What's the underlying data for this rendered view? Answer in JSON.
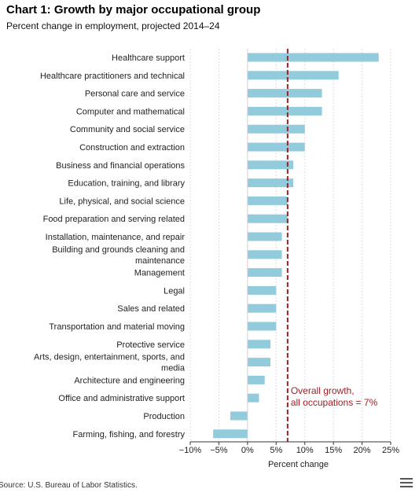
{
  "title": "Chart 1: Growth by major occupational group",
  "subtitle": "Percent change in employment, projected 2014–24",
  "source": "Source: U.S. Bureau of Labor Statistics.",
  "chart_data": {
    "type": "bar",
    "orientation": "horizontal",
    "categories": [
      "Healthcare support",
      "Healthcare practitioners and technical",
      "Personal care and service",
      "Computer and mathematical",
      "Community and social service",
      "Construction and extraction",
      "Business and financial operations",
      "Education, training, and library",
      "Life, physical, and social science",
      "Food preparation and serving related",
      "Installation, maintenance, and repair",
      "Building and grounds cleaning and maintenance",
      "Management",
      "Legal",
      "Sales and related",
      "Transportation and material moving",
      "Protective service",
      "Arts, design, entertainment, sports, and media",
      "Architecture and engineering",
      "Office and administrative support",
      "Production",
      "Farming, fishing, and forestry"
    ],
    "category_lines": [
      [
        "Healthcare support"
      ],
      [
        "Healthcare practitioners and technical"
      ],
      [
        "Personal care and service"
      ],
      [
        "Computer and mathematical"
      ],
      [
        "Community and social service"
      ],
      [
        "Construction and extraction"
      ],
      [
        "Business and financial operations"
      ],
      [
        "Education, training, and library"
      ],
      [
        "Life, physical, and social science"
      ],
      [
        "Food preparation and serving related"
      ],
      [
        "Installation, maintenance, and repair"
      ],
      [
        "Building and grounds cleaning and",
        "maintenance"
      ],
      [
        "Management"
      ],
      [
        "Legal"
      ],
      [
        "Sales and related"
      ],
      [
        "Transportation and material moving"
      ],
      [
        "Protective service"
      ],
      [
        "Arts, design, entertainment, sports, and",
        "media"
      ],
      [
        "Architecture and engineering"
      ],
      [
        "Office and administrative support"
      ],
      [
        "Production"
      ],
      [
        "Farming, fishing, and forestry"
      ]
    ],
    "values": [
      22.9,
      15.9,
      13.0,
      13.0,
      10.0,
      10.0,
      8.0,
      8.0,
      7.0,
      7.0,
      6.0,
      6.0,
      6.0,
      5.0,
      5.0,
      5.0,
      4.0,
      4.0,
      3.0,
      2.0,
      -3.0,
      -6.0
    ],
    "xlabel": "Percent change",
    "xlim": [
      -10,
      25
    ],
    "xticks": [
      -10,
      -5,
      0,
      5,
      10,
      15,
      20,
      25
    ],
    "xtick_labels": [
      "−10%",
      "−5%",
      "0%",
      "5%",
      "10%",
      "15%",
      "20%",
      "25%"
    ],
    "grid": true,
    "reference_line": {
      "value": 7,
      "label_lines": [
        "Overall growth,",
        "all occupations = 7%"
      ]
    },
    "colors": {
      "bar": "#92cbdb",
      "reference_line": "#a11f24",
      "grid": "#dddddd",
      "axis": "#333333"
    }
  }
}
